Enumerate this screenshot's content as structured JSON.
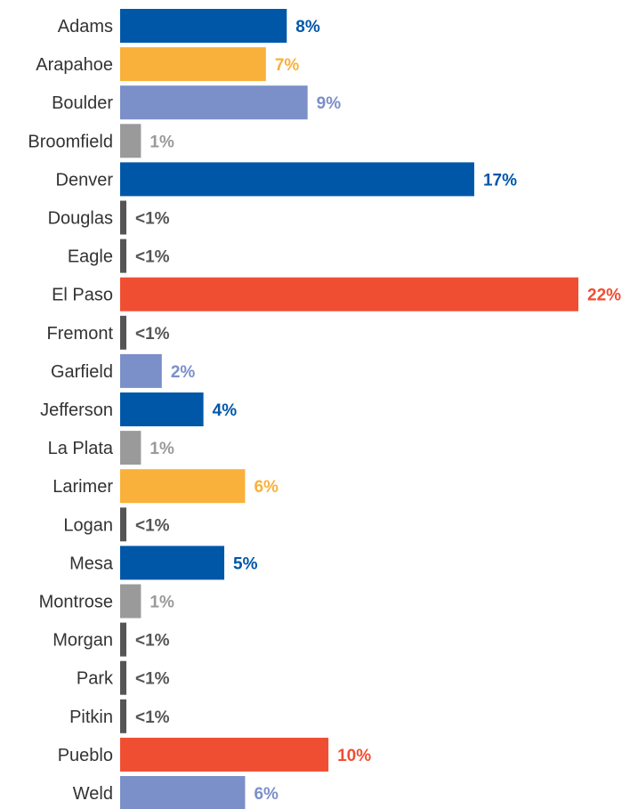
{
  "chart_data": {
    "type": "bar",
    "orientation": "horizontal",
    "title": "",
    "xlabel": "",
    "ylabel": "",
    "xlim": [
      0,
      22
    ],
    "grid": false,
    "legend": "none",
    "colors": {
      "dark_blue": "#0057a8",
      "orange": "#f9b13b",
      "light_blue": "#7b8fc9",
      "gray": "#9a9a9a",
      "dark_gray": "#555555",
      "red": "#f04e32"
    },
    "bars": [
      {
        "category": "Adams",
        "value": 8,
        "label": "8%",
        "color": "dark_blue"
      },
      {
        "category": "Arapahoe",
        "value": 7,
        "label": "7%",
        "color": "orange"
      },
      {
        "category": "Boulder",
        "value": 9,
        "label": "9%",
        "color": "light_blue"
      },
      {
        "category": "Broomfield",
        "value": 1,
        "label": "1%",
        "color": "gray"
      },
      {
        "category": "Denver",
        "value": 17,
        "label": "17%",
        "color": "dark_blue"
      },
      {
        "category": "Douglas",
        "value": 0.3,
        "label": "<1%",
        "color": "dark_gray"
      },
      {
        "category": "Eagle",
        "value": 0.3,
        "label": "<1%",
        "color": "dark_gray"
      },
      {
        "category": "El Paso",
        "value": 22,
        "label": "22%",
        "color": "red"
      },
      {
        "category": "Fremont",
        "value": 0.3,
        "label": "<1%",
        "color": "dark_gray"
      },
      {
        "category": "Garfield",
        "value": 2,
        "label": "2%",
        "color": "light_blue"
      },
      {
        "category": "Jefferson",
        "value": 4,
        "label": "4%",
        "color": "dark_blue"
      },
      {
        "category": "La Plata",
        "value": 1,
        "label": "1%",
        "color": "gray"
      },
      {
        "category": "Larimer",
        "value": 6,
        "label": "6%",
        "color": "orange"
      },
      {
        "category": "Logan",
        "value": 0.3,
        "label": "<1%",
        "color": "dark_gray"
      },
      {
        "category": "Mesa",
        "value": 5,
        "label": "5%",
        "color": "dark_blue"
      },
      {
        "category": "Montrose",
        "value": 1,
        "label": "1%",
        "color": "gray"
      },
      {
        "category": "Morgan",
        "value": 0.3,
        "label": "<1%",
        "color": "dark_gray"
      },
      {
        "category": "Park",
        "value": 0.3,
        "label": "<1%",
        "color": "dark_gray"
      },
      {
        "category": "Pitkin",
        "value": 0.3,
        "label": "<1%",
        "color": "dark_gray"
      },
      {
        "category": "Pueblo",
        "value": 10,
        "label": "10%",
        "color": "red"
      },
      {
        "category": "Weld",
        "value": 6,
        "label": "6%",
        "color": "light_blue"
      }
    ]
  }
}
